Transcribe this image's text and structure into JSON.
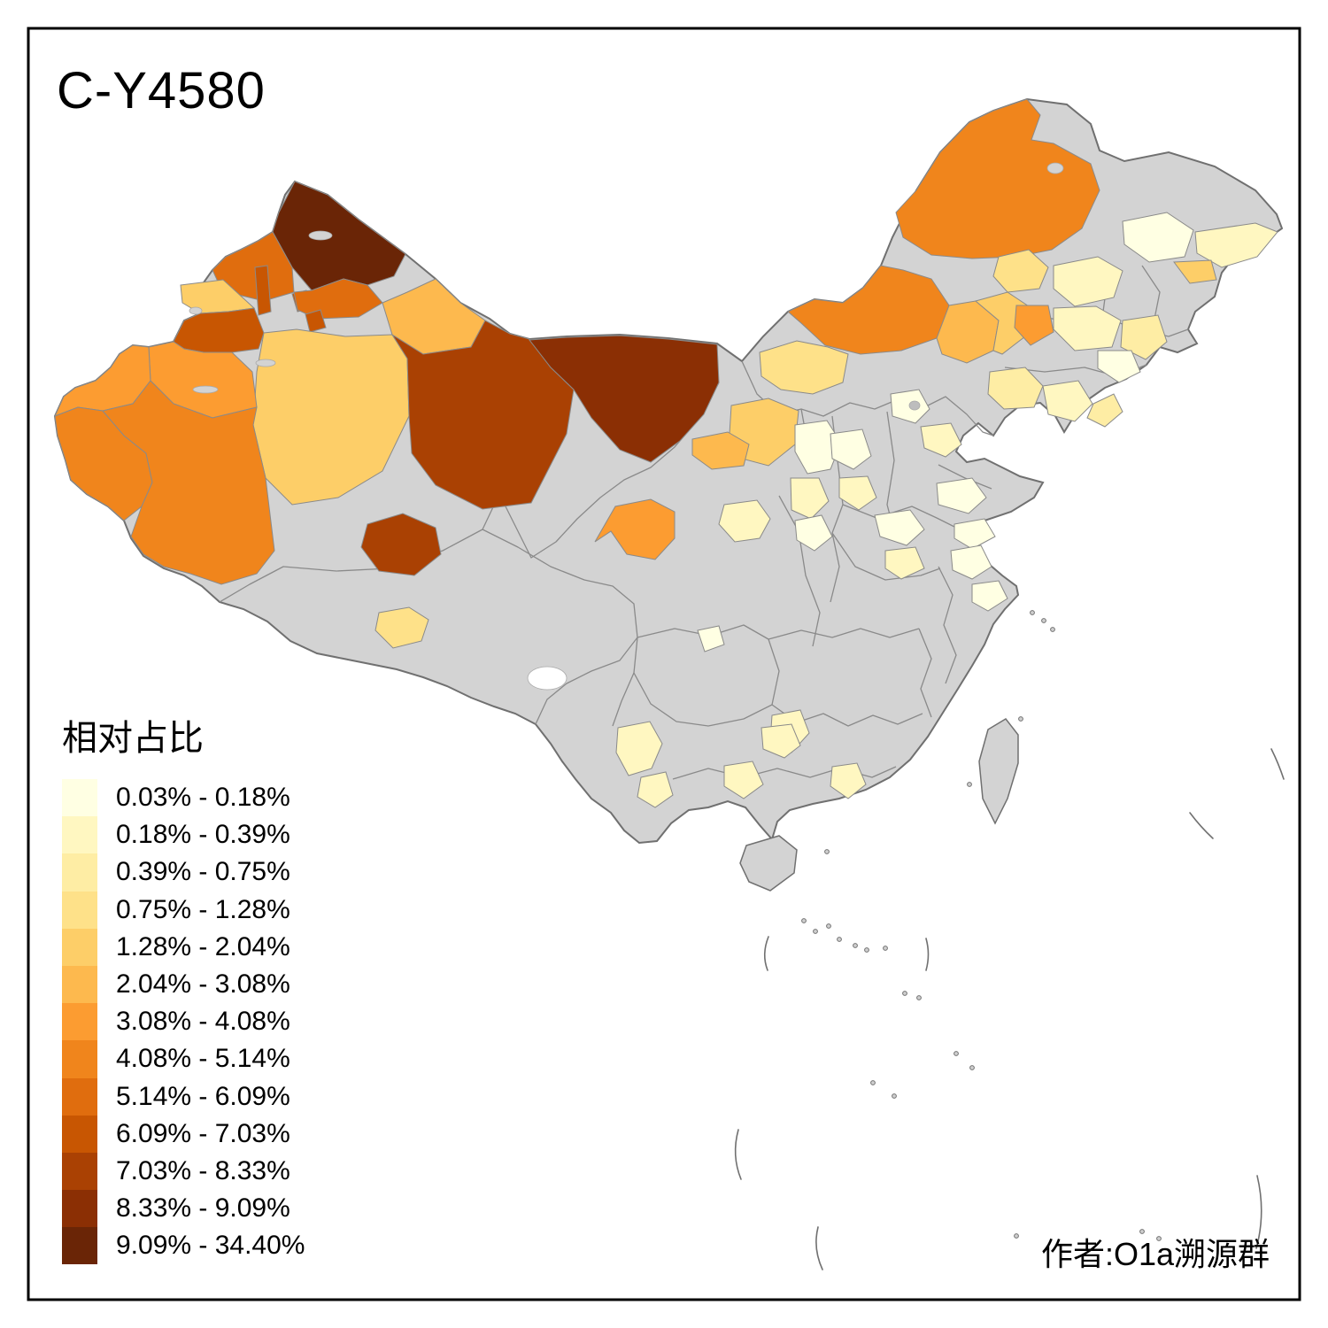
{
  "title": "C-Y4580",
  "attribution": "作者:O1a溯源群",
  "legend": {
    "title": "相对占比",
    "bins": [
      {
        "label": "0.03% - 0.18%",
        "color": "#FFFFE3"
      },
      {
        "label": "0.18% - 0.39%",
        "color": "#FFF7C1"
      },
      {
        "label": "0.39% - 0.75%",
        "color": "#FEEDA4"
      },
      {
        "label": "0.75% - 1.28%",
        "color": "#FEE189"
      },
      {
        "label": "1.28% - 2.04%",
        "color": "#FDCE68"
      },
      {
        "label": "2.04% - 3.08%",
        "color": "#FDB94E"
      },
      {
        "label": "3.08% - 4.08%",
        "color": "#FC9C31"
      },
      {
        "label": "4.08% - 5.14%",
        "color": "#F0851C"
      },
      {
        "label": "5.14% - 6.09%",
        "color": "#E06D0E"
      },
      {
        "label": "6.09% - 7.03%",
        "color": "#C85602"
      },
      {
        "label": "7.03% - 8.33%",
        "color": "#AA4103"
      },
      {
        "label": "8.33% - 9.09%",
        "color": "#8B2F04"
      },
      {
        "label": "9.09% - 34.40%",
        "color": "#6A2506"
      }
    ]
  },
  "map": {
    "base_fill": "#D3D3D3",
    "boundary_color": "#707070",
    "inner_border_color": "#8A8A8A",
    "background": "#FFFFFF",
    "frame_color": "#000000",
    "regions": [
      {
        "name": "altay",
        "bin": 13
      },
      {
        "name": "tacheng",
        "bin": 9
      },
      {
        "name": "karamay",
        "bin": 10
      },
      {
        "name": "bortala",
        "bin": 5
      },
      {
        "name": "ili",
        "bin": 10
      },
      {
        "name": "shihezi",
        "bin": 10
      },
      {
        "name": "changji",
        "bin": 9
      },
      {
        "name": "urumqi",
        "bin": 10
      },
      {
        "name": "hami-north",
        "bin": 6
      },
      {
        "name": "bayingol",
        "bin": 5
      },
      {
        "name": "aksu",
        "bin": 7
      },
      {
        "name": "kizilsu",
        "bin": 7
      },
      {
        "name": "kashgar",
        "bin": 8
      },
      {
        "name": "hotan",
        "bin": 8
      },
      {
        "name": "hami",
        "bin": 11
      },
      {
        "name": "alxa",
        "bin": 12
      },
      {
        "name": "qaidam",
        "bin": 11
      },
      {
        "name": "nagqu",
        "bin": 4
      },
      {
        "name": "ulanqab",
        "bin": 4
      },
      {
        "name": "ordos",
        "bin": 5
      },
      {
        "name": "wuwei",
        "bin": 6
      },
      {
        "name": "xining",
        "bin": 7
      },
      {
        "name": "lanzhou",
        "bin": 2
      },
      {
        "name": "ningxia-north",
        "bin": 1
      },
      {
        "name": "ningxia-south",
        "bin": 2
      },
      {
        "name": "hulunbuir",
        "bin": 8
      },
      {
        "name": "xilingol",
        "bin": 8
      },
      {
        "name": "chifeng",
        "bin": 6
      },
      {
        "name": "tongliao",
        "bin": 5
      },
      {
        "name": "hinggan",
        "bin": 4
      },
      {
        "name": "baicheng",
        "bin": 7
      },
      {
        "name": "heilongjiang-1",
        "bin": 2
      },
      {
        "name": "heilongjiang-2",
        "bin": 1
      },
      {
        "name": "heilongjiang-east",
        "bin": 2
      },
      {
        "name": "jiamusi",
        "bin": 5
      },
      {
        "name": "jilin-1",
        "bin": 2
      },
      {
        "name": "jilin-2",
        "bin": 3
      },
      {
        "name": "changchun",
        "bin": 1
      },
      {
        "name": "liaoning-1",
        "bin": 3
      },
      {
        "name": "liaoning-2",
        "bin": 2
      },
      {
        "name": "liaodong",
        "bin": 3
      },
      {
        "name": "beijing",
        "bin": 1
      },
      {
        "name": "hebei",
        "bin": 2
      },
      {
        "name": "shanxi-1",
        "bin": 1
      },
      {
        "name": "shanxi-2",
        "bin": 2
      },
      {
        "name": "shaanbei",
        "bin": 1
      },
      {
        "name": "henan-1",
        "bin": 1
      },
      {
        "name": "henan-2",
        "bin": 2
      },
      {
        "name": "shandong-1",
        "bin": 1
      },
      {
        "name": "shandong-2",
        "bin": 1
      },
      {
        "name": "jiangsu-1",
        "bin": 1
      },
      {
        "name": "jiangsu-2",
        "bin": 1
      },
      {
        "name": "hubei",
        "bin": 1
      },
      {
        "name": "chongqing",
        "bin": 2
      },
      {
        "name": "yunnan-1",
        "bin": 2
      },
      {
        "name": "yunnan-2",
        "bin": 2
      },
      {
        "name": "guizhou",
        "bin": 2
      },
      {
        "name": "nanning",
        "bin": 2
      },
      {
        "name": "guangdong",
        "bin": 2
      }
    ]
  }
}
